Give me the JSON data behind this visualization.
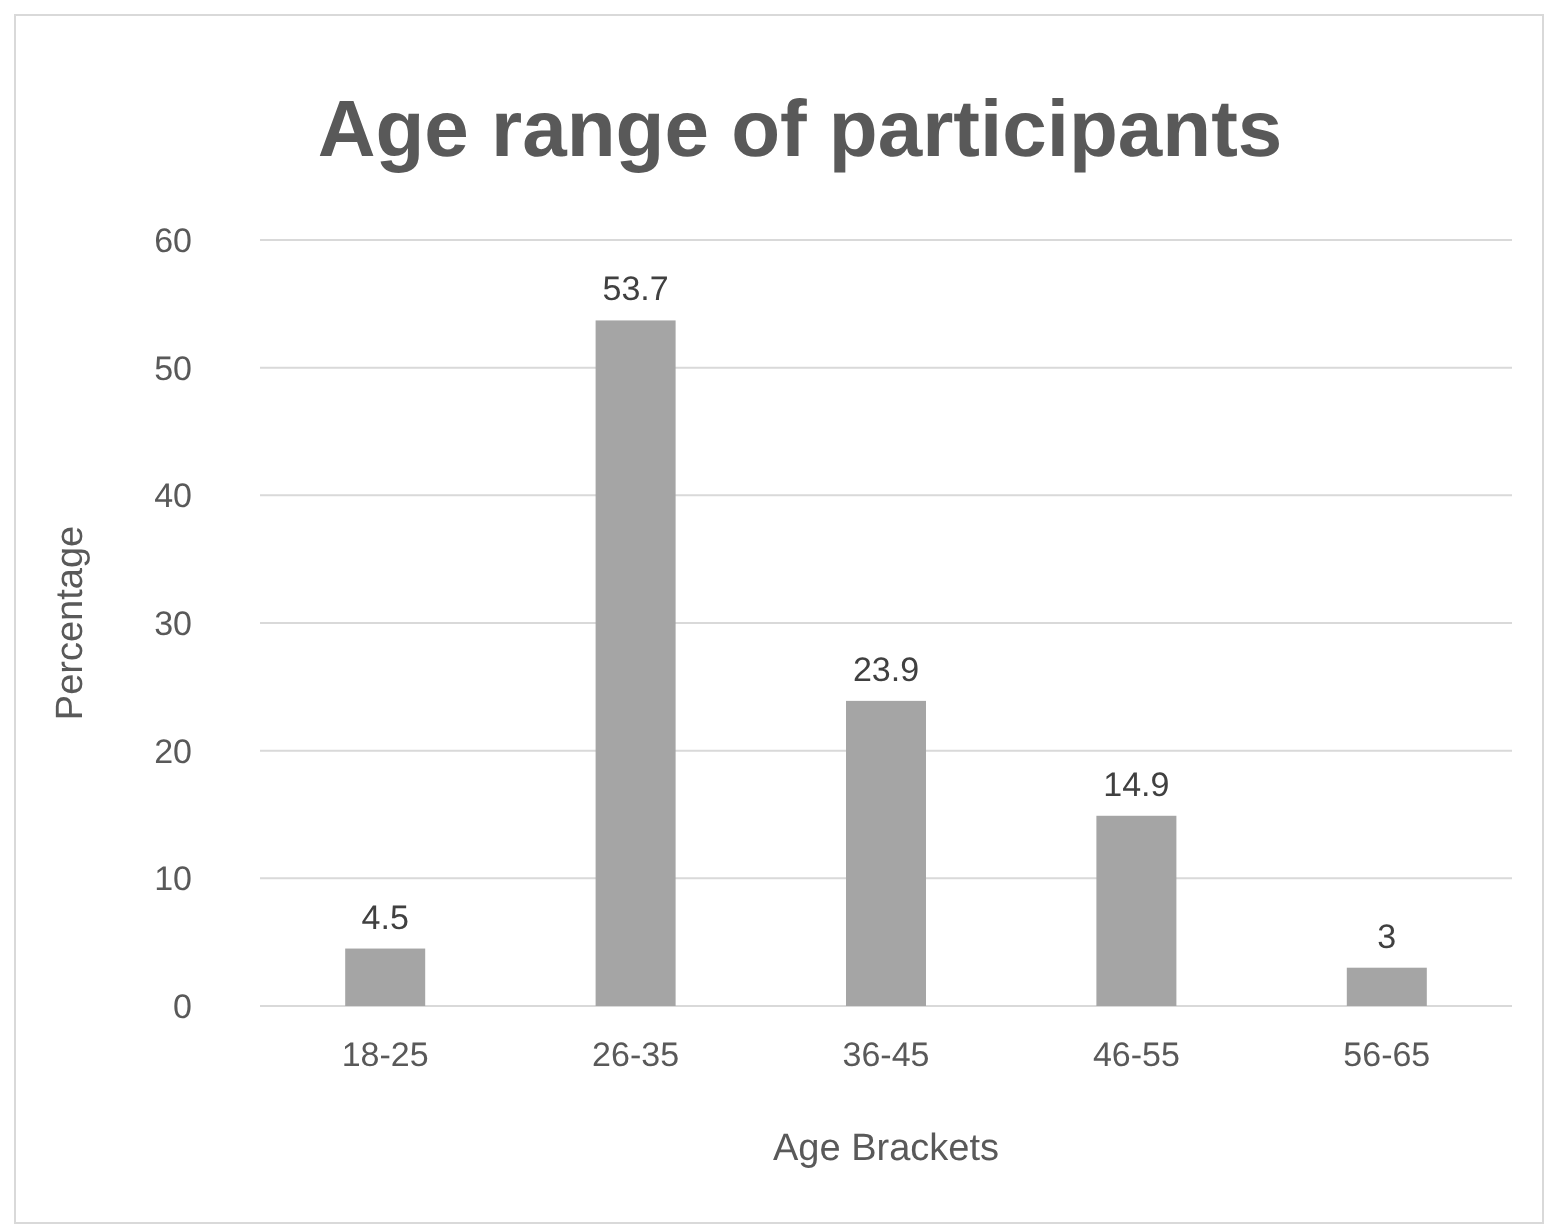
{
  "chart_data": {
    "type": "bar",
    "title": "Age range of participants",
    "xlabel": "Age Brackets",
    "ylabel": "Percentage",
    "categories": [
      "18-25",
      "26-35",
      "36-45",
      "46-55",
      "56-65"
    ],
    "values": [
      4.5,
      53.7,
      23.9,
      14.9,
      3
    ],
    "color": "#a5a5a5",
    "ylim": [
      0,
      60
    ],
    "yticks": [
      0,
      10,
      20,
      30,
      40,
      50,
      60
    ],
    "grid": "y",
    "data_labels": true
  }
}
